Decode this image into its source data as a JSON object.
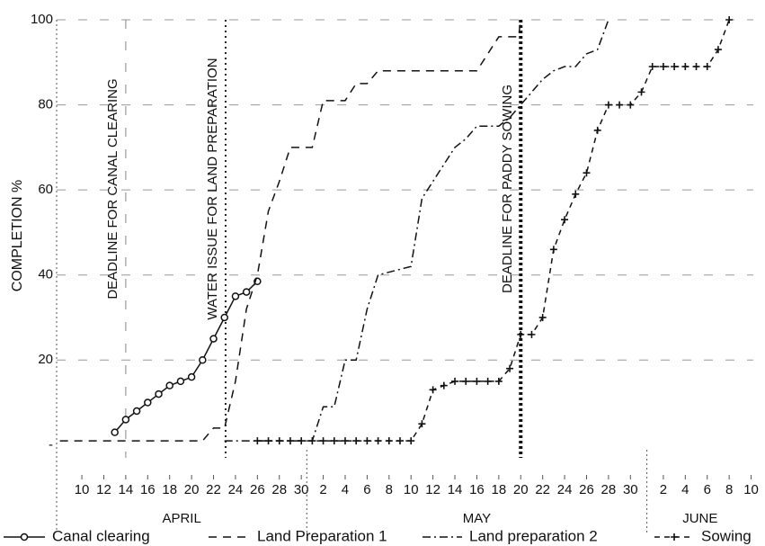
{
  "chart_data": {
    "type": "line",
    "y_label": "COMPLETION %",
    "xlim": [
      -2.3,
      61.2
    ],
    "ylim": [
      -3,
      100
    ],
    "grid": true,
    "legend": "bottom",
    "yticks": [
      {
        "value": 0,
        "label": "-"
      },
      20,
      40,
      60,
      80,
      100
    ],
    "xticks": [
      {
        "value": 0,
        "label": "10"
      },
      {
        "value": 2,
        "label": "12"
      },
      {
        "value": 4,
        "label": "14"
      },
      {
        "value": 6,
        "label": "16"
      },
      {
        "value": 8,
        "label": "18"
      },
      {
        "value": 10,
        "label": "20"
      },
      {
        "value": 12,
        "label": "22"
      },
      {
        "value": 14,
        "label": "24"
      },
      {
        "value": 16,
        "label": "26"
      },
      {
        "value": 18,
        "label": "28"
      },
      {
        "value": 20,
        "label": "30"
      },
      {
        "value": 22,
        "label": "2"
      },
      {
        "value": 24,
        "label": "4"
      },
      {
        "value": 26,
        "label": "6"
      },
      {
        "value": 28,
        "label": "8"
      },
      {
        "value": 30,
        "label": "10"
      },
      {
        "value": 32,
        "label": "12"
      },
      {
        "value": 34,
        "label": "14"
      },
      {
        "value": 36,
        "label": "16"
      },
      {
        "value": 38,
        "label": "18"
      },
      {
        "value": 40,
        "label": "20"
      },
      {
        "value": 42,
        "label": "22"
      },
      {
        "value": 44,
        "label": "24"
      },
      {
        "value": 46,
        "label": "26"
      },
      {
        "value": 48,
        "label": "28"
      },
      {
        "value": 50,
        "label": "30"
      },
      {
        "value": 53,
        "label": "2"
      },
      {
        "value": 55,
        "label": "4"
      },
      {
        "value": 57,
        "label": "6"
      },
      {
        "value": 59,
        "label": "8"
      },
      {
        "value": 61,
        "label": "10"
      }
    ],
    "months": [
      {
        "label": "APRIL",
        "start": -2.3,
        "end": 20.5
      },
      {
        "label": "MAY",
        "start": 20.5,
        "end": 51.5
      },
      {
        "label": "JUNE",
        "start": 51.5,
        "end": 61.2
      }
    ],
    "annotations": [
      {
        "text": "DEADLINE FOR CANAL CLEARING",
        "x": 4,
        "style": "dashed"
      },
      {
        "text": "WATER ISSUE FOR LAND PREPARATION",
        "x": 13.1,
        "style": "dotted"
      },
      {
        "text": "DEADLINE FOR  PADDY SOWING",
        "x": 40,
        "style": "bold"
      }
    ],
    "series": [
      {
        "name": "Canal clearing",
        "color": "#111111",
        "dash": "none",
        "marker": "circle",
        "x": [
          3,
          4,
          5,
          6,
          7,
          8,
          9,
          10,
          11,
          12,
          13,
          14,
          15,
          16
        ],
        "values": [
          3,
          6,
          8,
          10,
          12,
          14,
          15,
          16,
          20,
          25,
          30,
          35,
          36,
          38.5
        ]
      },
      {
        "name": "Land Preparation 1",
        "color": "#111111",
        "dash": "9 7",
        "marker": "none",
        "x": [
          -2,
          11,
          12,
          13,
          14,
          15,
          16,
          17,
          18,
          19,
          21,
          22,
          24,
          25,
          26,
          27,
          36,
          37,
          38,
          39.8,
          40
        ],
        "values": [
          1,
          1,
          4,
          4,
          15,
          32,
          40,
          55,
          62,
          70,
          70,
          81,
          81,
          85,
          85,
          88,
          88,
          92,
          96,
          96,
          100
        ]
      },
      {
        "name": "Land preparation 2",
        "color": "#111111",
        "dash": "9 4 2 4",
        "marker": "none",
        "x": [
          13,
          21,
          22,
          23,
          24,
          25,
          26,
          27,
          30,
          31,
          32,
          33,
          34,
          35,
          36,
          38,
          39,
          40,
          41,
          42,
          43,
          44,
          45,
          46,
          47,
          48
        ],
        "values": [
          1,
          1,
          9,
          9,
          20,
          20,
          32,
          40,
          42,
          58,
          62,
          66,
          70,
          72,
          75,
          75,
          77,
          80,
          83,
          86,
          88,
          89,
          89,
          92,
          93,
          100
        ]
      },
      {
        "name": "Sowing",
        "color": "#111111",
        "dash": "6 5",
        "marker": "plus",
        "x": [
          16,
          17,
          18,
          19,
          20,
          21,
          22,
          23,
          24,
          25,
          26,
          27,
          28,
          29,
          30,
          31,
          32,
          33,
          34,
          35,
          36,
          37,
          38,
          39,
          40,
          41,
          42,
          43,
          44,
          45,
          46,
          47,
          48,
          49,
          50,
          51,
          52,
          53,
          54,
          55,
          56,
          57,
          58,
          59
        ],
        "values": [
          1,
          1,
          1,
          1,
          1,
          1,
          1,
          1,
          1,
          1,
          1,
          1,
          1,
          1,
          1,
          5,
          13,
          14,
          15,
          15,
          15,
          15,
          15,
          18,
          26,
          26,
          30,
          46,
          53,
          59,
          64,
          74,
          80,
          80,
          80,
          83,
          89,
          89,
          89,
          89,
          89,
          89,
          93,
          100
        ]
      }
    ]
  }
}
